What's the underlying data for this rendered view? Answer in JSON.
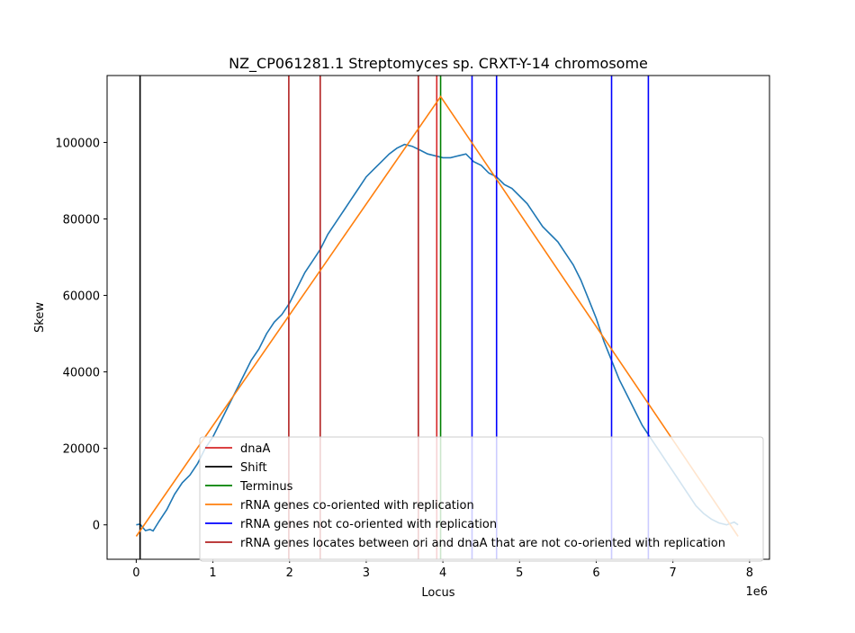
{
  "chart_data": {
    "type": "line",
    "title": "NZ_CP061281.1 Streptomyces sp. CRXT-Y-14 chromosome",
    "xlabel": "Locus",
    "ylabel": "Skew",
    "x_exponent_label": "1e6",
    "xlim": [
      -0.38,
      8.26
    ],
    "ylim": [
      -9000,
      117500
    ],
    "x_ticks": [
      0,
      1,
      2,
      3,
      4,
      5,
      6,
      7,
      8
    ],
    "x_tick_labels": [
      "0",
      "1",
      "2",
      "3",
      "4",
      "5",
      "6",
      "7",
      "8"
    ],
    "y_ticks": [
      0,
      20000,
      40000,
      60000,
      80000,
      100000
    ],
    "y_tick_labels": [
      "0",
      "20000",
      "40000",
      "60000",
      "80000",
      "100000"
    ],
    "grid": false,
    "legend_position": "lower right",
    "colors": {
      "skew": "#1f77b4",
      "dnaA": "#d62728",
      "shift": "#000000",
      "terminus": "#008000",
      "co_oriented": "#ff7f0e",
      "not_co_oriented": "#0000ff",
      "between_ori_dnaA": "#b22222"
    },
    "series": [
      {
        "name": "skew",
        "x": [
          0.0,
          0.05,
          0.12,
          0.18,
          0.22,
          0.3,
          0.4,
          0.5,
          0.6,
          0.7,
          0.8,
          0.9,
          1.0,
          1.1,
          1.2,
          1.3,
          1.4,
          1.5,
          1.6,
          1.7,
          1.8,
          1.9,
          2.0,
          2.1,
          2.2,
          2.3,
          2.4,
          2.5,
          2.6,
          2.7,
          2.8,
          2.9,
          3.0,
          3.1,
          3.2,
          3.3,
          3.4,
          3.5,
          3.6,
          3.7,
          3.8,
          3.9,
          4.0,
          4.1,
          4.2,
          4.3,
          4.4,
          4.5,
          4.6,
          4.7,
          4.8,
          4.9,
          5.0,
          5.1,
          5.2,
          5.3,
          5.4,
          5.5,
          5.6,
          5.7,
          5.8,
          5.9,
          6.0,
          6.1,
          6.2,
          6.3,
          6.4,
          6.5,
          6.6,
          6.7,
          6.8,
          6.9,
          7.0,
          7.1,
          7.2,
          7.3,
          7.4,
          7.5,
          7.6,
          7.7,
          7.8,
          7.85
        ],
        "y": [
          0,
          200,
          -1500,
          -1200,
          -1600,
          1000,
          4000,
          8000,
          11000,
          13000,
          16000,
          20000,
          23000,
          27000,
          31000,
          35000,
          39000,
          43000,
          46000,
          50000,
          53000,
          55000,
          58000,
          62000,
          66000,
          69000,
          72000,
          76000,
          79000,
          82000,
          85000,
          88000,
          91000,
          93000,
          95000,
          97000,
          98500,
          99500,
          99000,
          98000,
          97000,
          96500,
          96000,
          96000,
          96500,
          97000,
          95000,
          94000,
          92000,
          91000,
          89000,
          88000,
          86000,
          84000,
          81000,
          78000,
          76000,
          74000,
          71000,
          68000,
          64000,
          59000,
          54000,
          48000,
          43000,
          38000,
          34000,
          30000,
          26000,
          23000,
          20000,
          17000,
          14000,
          11000,
          8000,
          5000,
          3000,
          1500,
          500,
          0,
          700,
          0
        ]
      },
      {
        "name": "rRNA genes co-oriented with replication",
        "x": [
          0.0,
          3.97,
          7.85
        ],
        "y": [
          -3000,
          112000,
          -3000
        ]
      }
    ],
    "vlines": {
      "dnaA": [
        3.92
      ],
      "shift": [
        0.05
      ],
      "terminus": [
        3.97
      ],
      "not_co_oriented": [
        4.38,
        4.7,
        6.2,
        6.68
      ],
      "between_ori_dnaA": [
        1.99,
        2.4,
        3.68
      ]
    },
    "legend": [
      {
        "label": "dnaA",
        "color": "#d62728"
      },
      {
        "label": "Shift",
        "color": "#000000"
      },
      {
        "label": "Terminus",
        "color": "#008000"
      },
      {
        "label": "rRNA genes co-oriented with replication",
        "color": "#ff7f0e"
      },
      {
        "label": "rRNA genes not co-oriented with replication",
        "color": "#0000ff"
      },
      {
        "label": "rRNA genes locates between ori and dnaA that are not co-oriented with replication",
        "color": "#b22222"
      }
    ]
  }
}
